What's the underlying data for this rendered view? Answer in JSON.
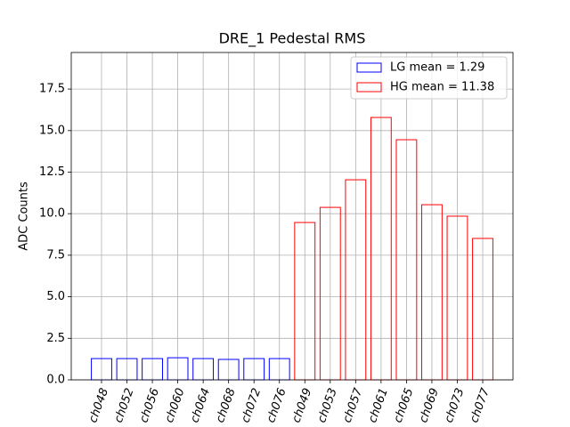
{
  "chart_data": {
    "type": "bar",
    "title": "DRE_1 Pedestal RMS",
    "ylabel": "ADC Counts",
    "categories": [
      "ch048",
      "ch052",
      "ch056",
      "ch060",
      "ch064",
      "ch068",
      "ch072",
      "ch076",
      "ch049",
      "ch053",
      "ch057",
      "ch061",
      "ch065",
      "ch069",
      "ch073",
      "ch077"
    ],
    "series": [
      {
        "name": "LG mean = 1.29",
        "color": "#0000ff",
        "values": [
          1.28,
          1.28,
          1.28,
          1.33,
          1.28,
          1.23,
          1.28,
          1.28,
          null,
          null,
          null,
          null,
          null,
          null,
          null,
          null
        ]
      },
      {
        "name": "HG mean = 11.38",
        "color": "#ff0000",
        "values": [
          null,
          null,
          null,
          null,
          null,
          null,
          null,
          null,
          9.47,
          10.38,
          12.04,
          15.79,
          14.45,
          10.54,
          9.85,
          8.51
        ]
      }
    ],
    "ylim": [
      0,
      19.7
    ],
    "yticks": [
      {
        "value": 0,
        "label": "0.0"
      },
      2.5,
      {
        "value": 5,
        "label": "5.0"
      },
      7.5,
      {
        "value": 10,
        "label": "10.0"
      },
      12.5,
      {
        "value": 15,
        "label": "15.0"
      },
      17.5
    ],
    "grid": true,
    "legend": "upper right"
  }
}
